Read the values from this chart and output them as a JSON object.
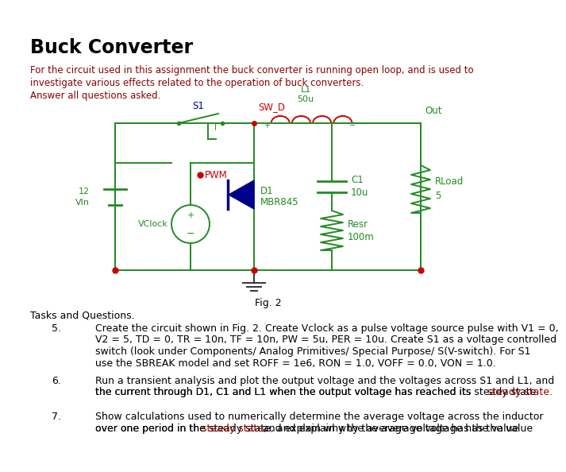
{
  "title": "Buck Converter",
  "intro_line1": "For the circuit used in this assignment the buck converter is running open loop, and is used to",
  "intro_line2": "investigate various effects related to the operation of buck converters.",
  "intro_line3": "Answer all questions asked.",
  "fig_caption": "Fig. 2",
  "tasks_header": "Tasks and Questions.",
  "task5_num": "5.",
  "task5_lines": [
    "Create the circuit shown in Fig. 2. Create Vclock as a pulse voltage source pulse with V1 = 0,",
    "V2 = 5, TD = 0, TR = 10n, TF = 10n, PW = 5u, PER = 10u. Create S1 as a voltage controlled",
    "switch (look under Components/ Analog Primitives/ Special Purpose/ S(V-switch). For S1",
    "use the SBREAK model and set ROFF = 1e6, RON = 1.0, VOFF = 0.0, VON = 1.0."
  ],
  "task6_num": "6.",
  "task6_lines": [
    "Run a transient analysis and plot the output voltage and the voltages across S1 and L1, and",
    "the current through D1, C1 and L1 when the output voltage has reached its steady state."
  ],
  "task7_num": "7.",
  "task7_lines": [
    "Show calculations used to numerically determine the average voltage across the inductor",
    "over one period in the steady state, and explain why the average voltage has the value"
  ],
  "bg_color": "#ffffff",
  "text_color": "#000000",
  "intro_color": "#8b0000",
  "circuit_green": "#228B22",
  "circuit_blue": "#00008B",
  "circuit_red": "#CC0000",
  "circuit_darkgreen": "#2E8B57",
  "task_text_color": "#000000",
  "steady_state_color": "#8b0000"
}
